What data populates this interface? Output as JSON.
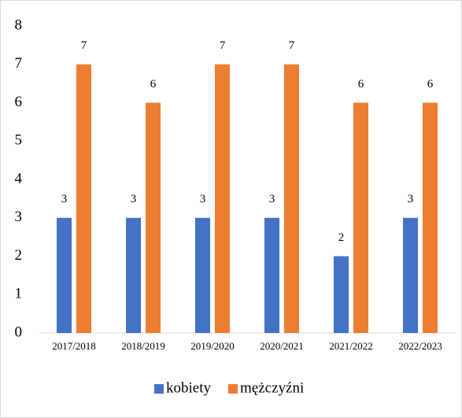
{
  "chart_data": {
    "type": "bar",
    "categories": [
      "2017/2018",
      "2018/2019",
      "2019/2020",
      "2020/2021",
      "2021/2022",
      "2022/2023"
    ],
    "series": [
      {
        "name": "kobiety",
        "color": "#4472c4",
        "values": [
          3,
          3,
          3,
          3,
          2,
          3
        ]
      },
      {
        "name": "mężczyźni",
        "color": "#ed7d31",
        "values": [
          7,
          6,
          7,
          7,
          6,
          6
        ]
      }
    ],
    "ylim": [
      0,
      8
    ],
    "yticks": [
      0,
      1,
      2,
      3,
      4,
      5,
      6,
      7,
      8
    ],
    "grid": false,
    "legend": "bottom"
  }
}
